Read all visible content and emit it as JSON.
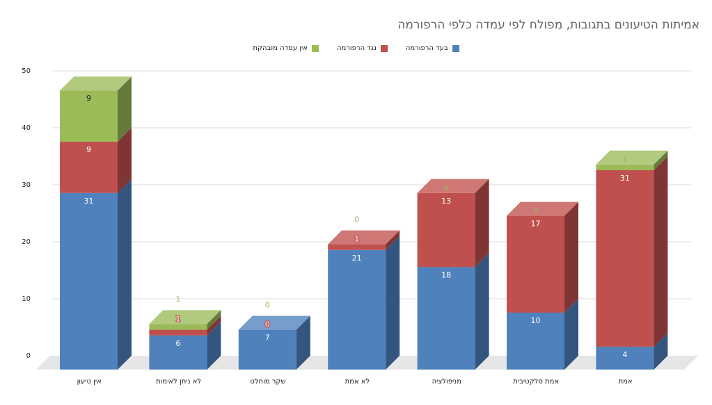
{
  "chart_data": {
    "type": "bar",
    "stacked": true,
    "three_d": true,
    "title": "אמיתות הטיעונים בתגובות, מפולח לפי עמדה כלפי הרפורמה",
    "categories": [
      "אין טיעון",
      "לא ניתן לאימות",
      "שקר מוחלט",
      "לא אמת",
      "מניפולציה",
      "אמת סלקטיבית",
      "אמת"
    ],
    "series": [
      {
        "name": "בעד הרפורמה",
        "color": "#4f81bd",
        "values": [
          31,
          6,
          7,
          21,
          18,
          10,
          4
        ]
      },
      {
        "name": "נגד הרפורמה",
        "color": "#c0504d",
        "values": [
          9,
          1,
          0,
          1,
          13,
          17,
          31
        ]
      },
      {
        "name": "אין עמדה מובהקת",
        "color": "#9bbb59",
        "values": [
          9,
          1,
          0,
          0,
          0,
          0,
          1
        ]
      }
    ],
    "y_ticks": [
      "0",
      "10",
      "20",
      "30",
      "40",
      "50"
    ],
    "ylim": [
      0,
      50
    ],
    "grid": true,
    "legend_position": "top"
  }
}
